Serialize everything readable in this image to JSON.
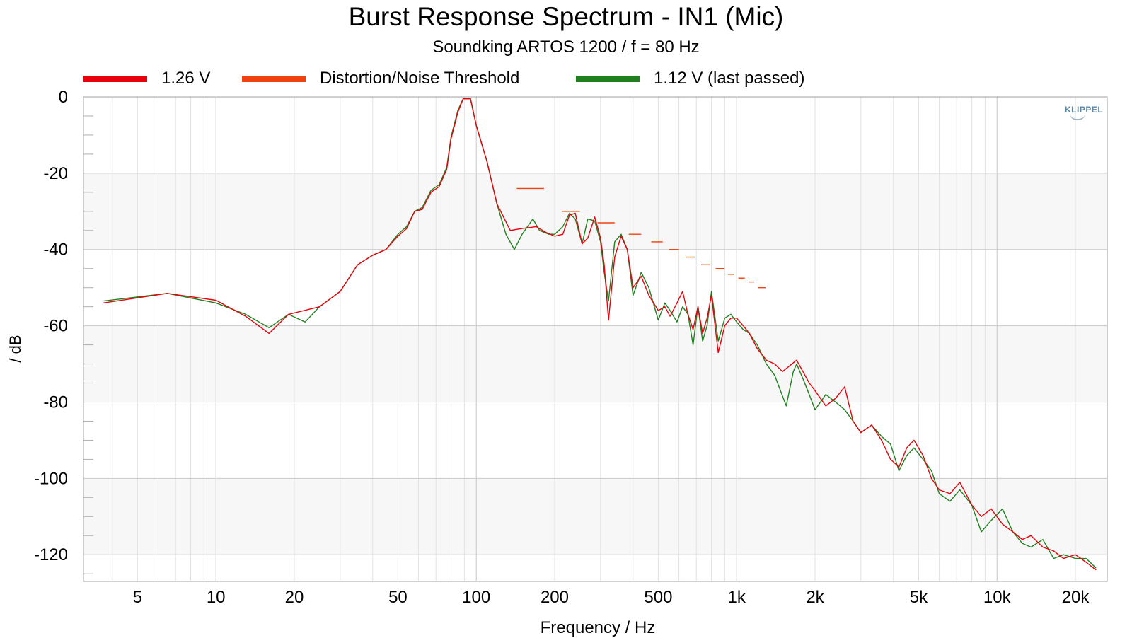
{
  "chart_data": {
    "type": "line",
    "title": "Burst Response Spectrum - IN1 (Mic)",
    "subtitle": "Soundking ARTOS 1200 / f = 80 Hz",
    "xlabel": "Frequency / Hz",
    "ylabel": "/ dB",
    "xscale": "log",
    "xlim": [
      3.1,
      26500
    ],
    "ylim": [
      -127,
      0
    ],
    "x_ticks": [
      {
        "value": 5,
        "label": "5"
      },
      {
        "value": 10,
        "label": "10"
      },
      {
        "value": 20,
        "label": "20"
      },
      {
        "value": 50,
        "label": "50"
      },
      {
        "value": 100,
        "label": "100"
      },
      {
        "value": 200,
        "label": "200"
      },
      {
        "value": 500,
        "label": "500"
      },
      {
        "value": 1000,
        "label": "1k"
      },
      {
        "value": 2000,
        "label": "2k"
      },
      {
        "value": 5000,
        "label": "5k"
      },
      {
        "value": 10000,
        "label": "10k"
      },
      {
        "value": 20000,
        "label": "20k"
      }
    ],
    "y_ticks": [
      0,
      -20,
      -40,
      -60,
      -80,
      -100,
      -120
    ],
    "grid": true,
    "legend_position": "top",
    "logo": "KLIPPEL",
    "series": [
      {
        "name": "1.26 V",
        "color": "#e8000b",
        "style": "line",
        "x": [
          3.7,
          6.5,
          10,
          13,
          16,
          19,
          25,
          30,
          35,
          40,
          45,
          50,
          54,
          58,
          62,
          67,
          72,
          77,
          80,
          85,
          89,
          95,
          100,
          110,
          120,
          135,
          150,
          170,
          185,
          200,
          215,
          228,
          240,
          255,
          268,
          285,
          300,
          310,
          322,
          340,
          360,
          380,
          400,
          430,
          460,
          500,
          530,
          555,
          590,
          620,
          650,
          680,
          710,
          740,
          770,
          800,
          850,
          900,
          950,
          1000,
          1060,
          1120,
          1200,
          1300,
          1400,
          1500,
          1700,
          1900,
          2000,
          2200,
          2400,
          2600,
          2800,
          3000,
          3300,
          3600,
          3900,
          4200,
          4500,
          4800,
          5200,
          5600,
          6000,
          6600,
          7200,
          8000,
          8700,
          9500,
          10500,
          11500,
          12500,
          13500,
          15000,
          16500,
          18000,
          20000,
          22000,
          24000
        ],
        "y": [
          -54,
          -51.5,
          -53.3,
          -57.5,
          -62,
          -57,
          -55,
          -51,
          -44,
          -41.5,
          -40,
          -36.5,
          -34.5,
          -30,
          -29.5,
          -25,
          -23.5,
          -19,
          -11,
          -4,
          -0.5,
          -0.5,
          -7.5,
          -17,
          -28,
          -35,
          -34.5,
          -34,
          -35.5,
          -36.5,
          -36,
          -31,
          -30.5,
          -38.5,
          -37,
          -31.5,
          -37,
          -44,
          -58.5,
          -42,
          -36.5,
          -40,
          -50,
          -47,
          -52,
          -56,
          -55,
          -57.5,
          -54,
          -51,
          -57,
          -61,
          -55,
          -62,
          -58,
          -52,
          -67,
          -60,
          -58,
          -58,
          -60,
          -62,
          -66,
          -69,
          -70,
          -72,
          -69,
          -75,
          -77,
          -81,
          -79,
          -76,
          -85,
          -88,
          -86,
          -90,
          -95,
          -97,
          -92,
          -90,
          -94,
          -100,
          -103,
          -104,
          -101,
          -107,
          -110,
          -108,
          -112,
          -114,
          -116,
          -115,
          -118,
          -119,
          -121,
          -120,
          -122,
          -124
        ]
      },
      {
        "name": "Distortion/Noise Threshold",
        "color": "#f0420f",
        "style": "segments",
        "segments": [
          {
            "x": [
              143,
              182
            ],
            "y": -24
          },
          {
            "x": [
              213,
              250
            ],
            "y": -30
          },
          {
            "x": [
              292,
              340
            ],
            "y": -33
          },
          {
            "x": [
              385,
              430
            ],
            "y": -36
          },
          {
            "x": [
              470,
              520
            ],
            "y": -38
          },
          {
            "x": [
              550,
              600
            ],
            "y": -40
          },
          {
            "x": [
              635,
              690
            ],
            "y": -42
          },
          {
            "x": [
              730,
              790
            ],
            "y": -44
          },
          {
            "x": [
              830,
              900
            ],
            "y": -45
          },
          {
            "x": [
              925,
              980
            ],
            "y": -46.5
          },
          {
            "x": [
              1015,
              1075
            ],
            "y": -47.5
          },
          {
            "x": [
              1110,
              1170
            ],
            "y": -48.5
          },
          {
            "x": [
              1210,
              1290
            ],
            "y": -50
          }
        ]
      },
      {
        "name": "1.12 V (last passed)",
        "color": "#208020",
        "style": "line",
        "x": [
          3.7,
          6.5,
          10,
          13,
          16,
          19,
          22,
          25,
          30,
          35,
          40,
          45,
          50,
          54,
          58,
          62,
          67,
          72,
          77,
          80,
          85,
          89,
          95,
          100,
          110,
          120,
          130,
          140,
          150,
          165,
          175,
          190,
          200,
          215,
          228,
          240,
          255,
          268,
          285,
          300,
          310,
          322,
          340,
          360,
          380,
          400,
          430,
          460,
          500,
          530,
          555,
          590,
          620,
          650,
          680,
          710,
          740,
          770,
          800,
          850,
          900,
          950,
          1000,
          1060,
          1120,
          1200,
          1300,
          1400,
          1550,
          1650,
          1700,
          1800,
          1900,
          2000,
          2200,
          2400,
          2600,
          2800,
          3000,
          3300,
          3600,
          3900,
          4200,
          4500,
          4800,
          5200,
          5600,
          6000,
          6600,
          7200,
          8000,
          8700,
          9500,
          10500,
          11500,
          12500,
          13500,
          15000,
          16500,
          18000,
          20000,
          22000,
          24000
        ],
        "y": [
          -53.5,
          -51.5,
          -54,
          -57,
          -60.5,
          -57,
          -59,
          -55,
          -51,
          -44,
          -41.5,
          -40,
          -36,
          -34,
          -30,
          -29,
          -24.5,
          -23,
          -18.5,
          -10.5,
          -3.5,
          -0.5,
          -0.5,
          -7.5,
          -17,
          -28,
          -36,
          -40,
          -36,
          -32,
          -35,
          -36,
          -36,
          -34,
          -30.5,
          -32,
          -38.5,
          -32,
          -32.5,
          -38,
          -46,
          -53.5,
          -38,
          -36,
          -40,
          -52,
          -46,
          -50,
          -58.5,
          -54,
          -56,
          -59,
          -55,
          -57,
          -65,
          -55,
          -64,
          -60,
          -51,
          -64,
          -58,
          -57,
          -59,
          -61,
          -62,
          -65,
          -70,
          -73,
          -81,
          -72,
          -70,
          -74,
          -78,
          -82,
          -78,
          -80,
          -82,
          -85,
          -88,
          -86,
          -89,
          -91,
          -98,
          -94,
          -92,
          -95,
          -98,
          -104,
          -106,
          -103,
          -107,
          -114,
          -111,
          -108,
          -114,
          -117,
          -118,
          -116,
          -121,
          -120,
          -121,
          -121,
          -123.5
        ]
      }
    ]
  }
}
